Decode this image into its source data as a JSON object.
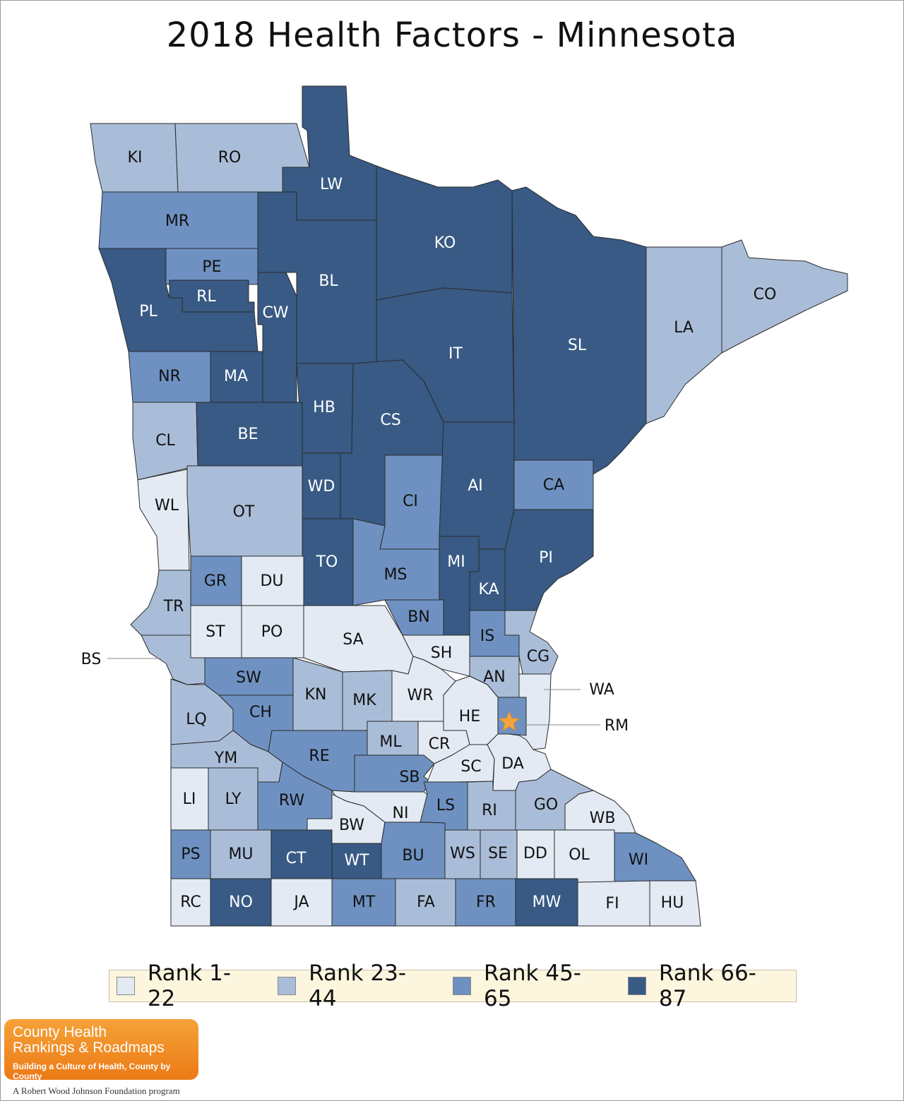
{
  "title": "2018 Health Factors - Minnesota",
  "colors": {
    "rank1": "#e3eaf3",
    "rank2": "#aabdd8",
    "rank3": "#6e91c1",
    "rank4": "#385a84",
    "border": "#2a2a2a",
    "star": "#f4a43c"
  },
  "legend": [
    {
      "label": "Rank 1-22",
      "rank": 1
    },
    {
      "label": "Rank 23-44",
      "rank": 2
    },
    {
      "label": "Rank 45-65",
      "rank": 3
    },
    {
      "label": "Rank 66-87",
      "rank": 4
    }
  ],
  "counties": [
    {
      "code": "KI",
      "rank": 2
    },
    {
      "code": "RO",
      "rank": 2
    },
    {
      "code": "LW",
      "rank": 4
    },
    {
      "code": "MR",
      "rank": 3
    },
    {
      "code": "PE",
      "rank": 3
    },
    {
      "code": "RL",
      "rank": 4
    },
    {
      "code": "PL",
      "rank": 4
    },
    {
      "code": "BL",
      "rank": 4
    },
    {
      "code": "CW",
      "rank": 4
    },
    {
      "code": "KO",
      "rank": 4
    },
    {
      "code": "IT",
      "rank": 4
    },
    {
      "code": "SL",
      "rank": 4
    },
    {
      "code": "LA",
      "rank": 2
    },
    {
      "code": "CO",
      "rank": 2
    },
    {
      "code": "NR",
      "rank": 3
    },
    {
      "code": "MA",
      "rank": 4
    },
    {
      "code": "HB",
      "rank": 4
    },
    {
      "code": "CS",
      "rank": 4
    },
    {
      "code": "CL",
      "rank": 2
    },
    {
      "code": "BE",
      "rank": 4
    },
    {
      "code": "WD",
      "rank": 4
    },
    {
      "code": "CI",
      "rank": 3
    },
    {
      "code": "AI",
      "rank": 4
    },
    {
      "code": "CA",
      "rank": 3
    },
    {
      "code": "WL",
      "rank": 1
    },
    {
      "code": "OT",
      "rank": 2
    },
    {
      "code": "TO",
      "rank": 4
    },
    {
      "code": "MS",
      "rank": 3
    },
    {
      "code": "MI",
      "rank": 4
    },
    {
      "code": "KA",
      "rank": 4
    },
    {
      "code": "PI",
      "rank": 4
    },
    {
      "code": "GR",
      "rank": 3
    },
    {
      "code": "DU",
      "rank": 1
    },
    {
      "code": "TR",
      "rank": 2
    },
    {
      "code": "BN",
      "rank": 3
    },
    {
      "code": "ST",
      "rank": 1
    },
    {
      "code": "PO",
      "rank": 1
    },
    {
      "code": "SA",
      "rank": 1
    },
    {
      "code": "IS",
      "rank": 3
    },
    {
      "code": "CG",
      "rank": 2
    },
    {
      "code": "SH",
      "rank": 1
    },
    {
      "code": "BS",
      "rank": 2
    },
    {
      "code": "SW",
      "rank": 3
    },
    {
      "code": "KN",
      "rank": 2
    },
    {
      "code": "MK",
      "rank": 2
    },
    {
      "code": "WR",
      "rank": 1
    },
    {
      "code": "AN",
      "rank": 2
    },
    {
      "code": "WA",
      "rank": 1
    },
    {
      "code": "HE",
      "rank": 1
    },
    {
      "code": "RM",
      "rank": 3
    },
    {
      "code": "LQ",
      "rank": 2
    },
    {
      "code": "CH",
      "rank": 3
    },
    {
      "code": "ML",
      "rank": 2
    },
    {
      "code": "CR",
      "rank": 1
    },
    {
      "code": "YM",
      "rank": 2
    },
    {
      "code": "RE",
      "rank": 3
    },
    {
      "code": "SB",
      "rank": 3
    },
    {
      "code": "SC",
      "rank": 1
    },
    {
      "code": "DA",
      "rank": 1
    },
    {
      "code": "LI",
      "rank": 1
    },
    {
      "code": "LY",
      "rank": 2
    },
    {
      "code": "RW",
      "rank": 3
    },
    {
      "code": "NI",
      "rank": 1
    },
    {
      "code": "LS",
      "rank": 3
    },
    {
      "code": "RI",
      "rank": 2
    },
    {
      "code": "GO",
      "rank": 2
    },
    {
      "code": "WB",
      "rank": 1
    },
    {
      "code": "BW",
      "rank": 1
    },
    {
      "code": "PS",
      "rank": 3
    },
    {
      "code": "MU",
      "rank": 2
    },
    {
      "code": "CT",
      "rank": 4
    },
    {
      "code": "WT",
      "rank": 4
    },
    {
      "code": "BU",
      "rank": 3
    },
    {
      "code": "WS",
      "rank": 2
    },
    {
      "code": "SE",
      "rank": 2
    },
    {
      "code": "DD",
      "rank": 1
    },
    {
      "code": "OL",
      "rank": 1
    },
    {
      "code": "WI",
      "rank": 3
    },
    {
      "code": "RC",
      "rank": 1
    },
    {
      "code": "NO",
      "rank": 4
    },
    {
      "code": "JA",
      "rank": 1
    },
    {
      "code": "MT",
      "rank": 3
    },
    {
      "code": "FA",
      "rank": 2
    },
    {
      "code": "FR",
      "rank": 3
    },
    {
      "code": "MW",
      "rank": 4
    },
    {
      "code": "FI",
      "rank": 1
    },
    {
      "code": "HU",
      "rank": 1
    }
  ],
  "logo": {
    "line1": "County Health",
    "line2": "Rankings & Roadmaps",
    "line3": "Building a Culture of Health, County by County"
  },
  "tagline": "A Robert Wood Johnson Foundation program"
}
